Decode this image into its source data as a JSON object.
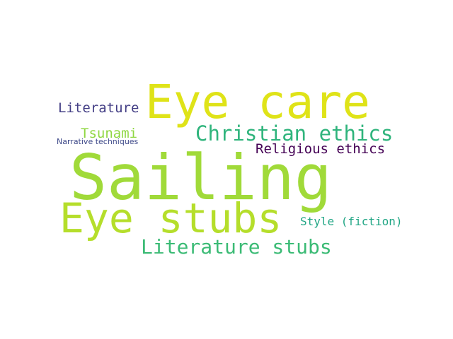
{
  "words": [
    {
      "text": "Sailing",
      "color": "#a0da39"
    },
    {
      "text": "Eye care",
      "color": "#dfe318"
    },
    {
      "text": "Eye stubs",
      "color": "#b5de2b"
    },
    {
      "text": "Christian ethics",
      "color": "#2fb47c"
    },
    {
      "text": "Literature stubs",
      "color": "#3bbb75"
    },
    {
      "text": "Religious ethics",
      "color": "#440154"
    },
    {
      "text": "Literature",
      "color": "#433e85"
    },
    {
      "text": "Tsunami",
      "color": "#90d743"
    },
    {
      "text": "Style (fiction)",
      "color": "#21a685"
    },
    {
      "text": "Narrative techniques",
      "color": "#3e4989"
    }
  ]
}
